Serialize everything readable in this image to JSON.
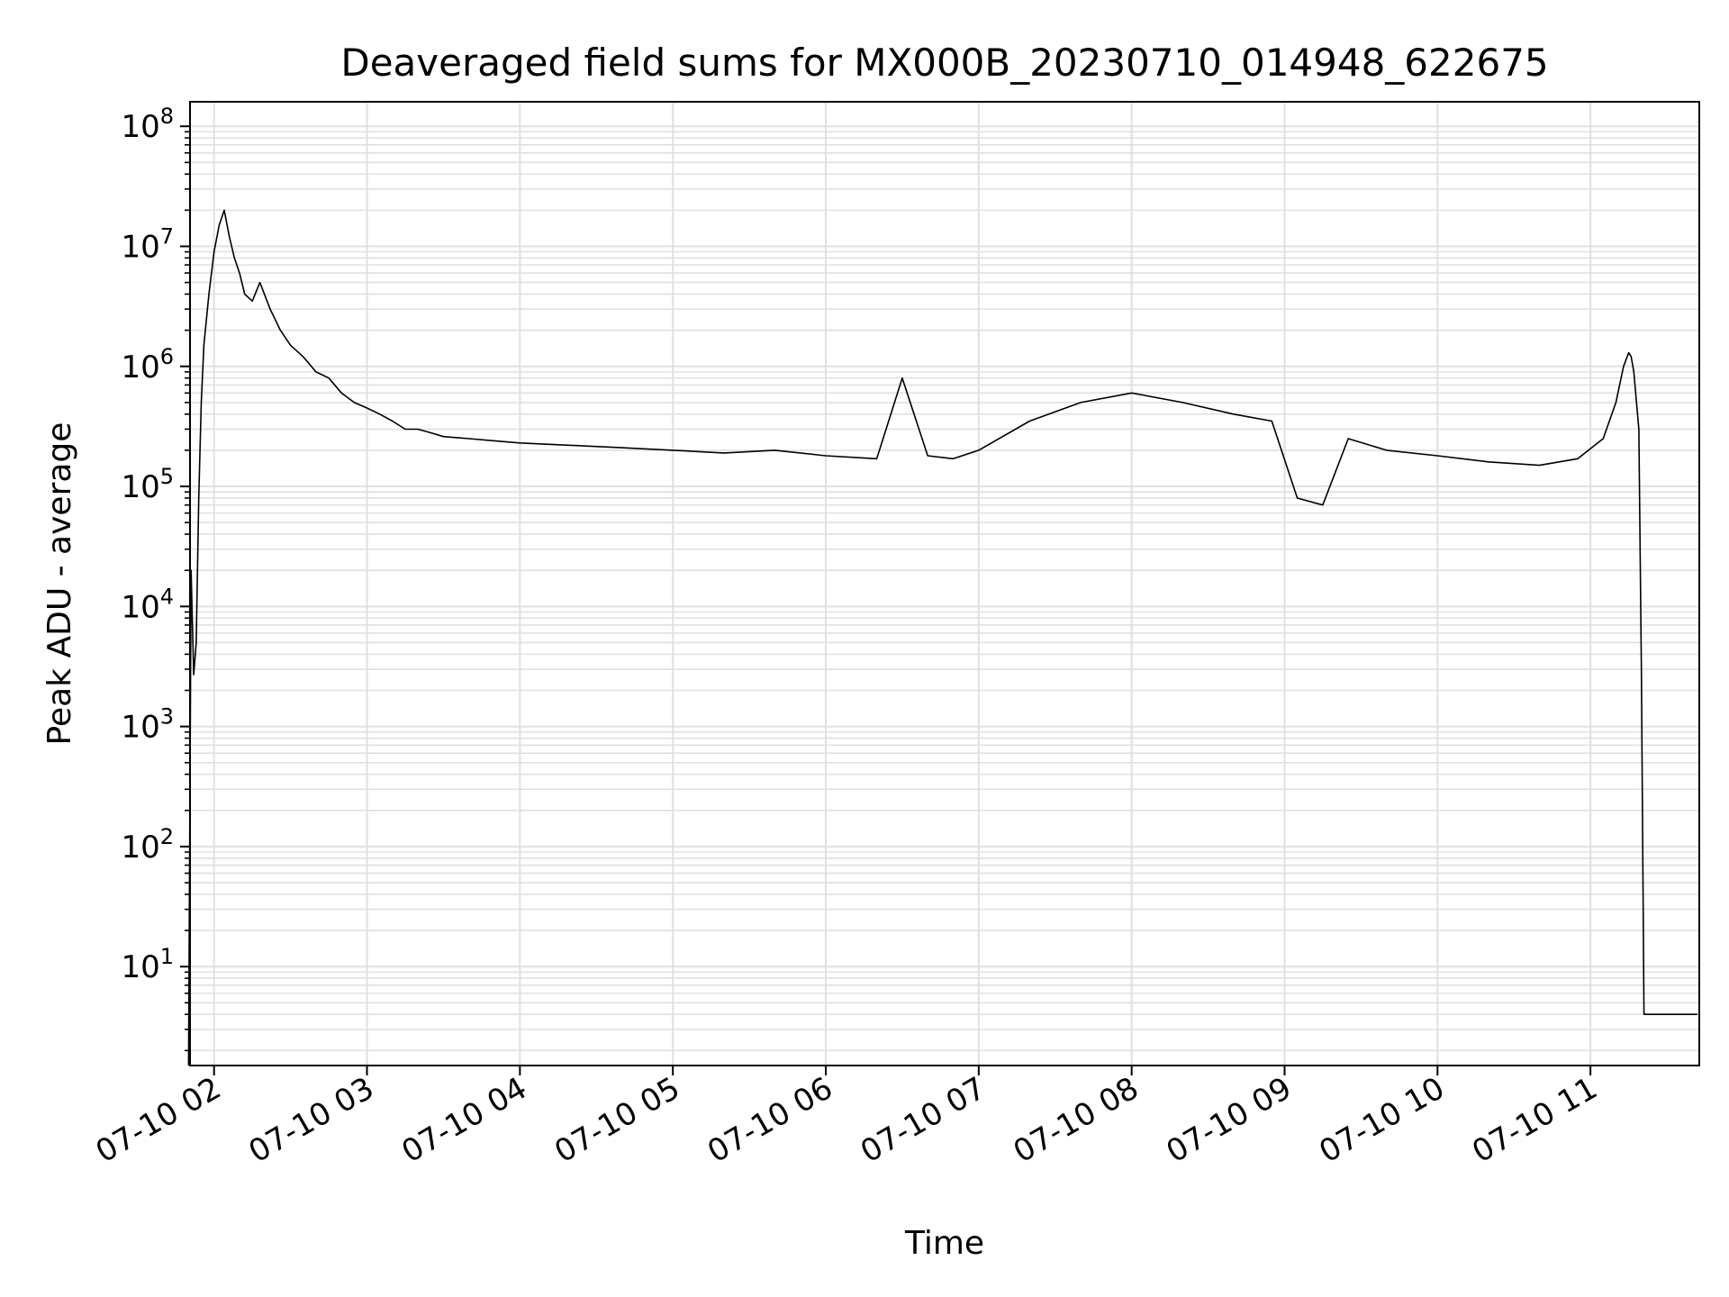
{
  "chart_data": {
    "type": "line",
    "title": "Deaveraged field sums for MX000B_20230710_014948_622675",
    "xlabel": "Time",
    "ylabel": "Peak ADU - average",
    "yscale": "log",
    "ylim": [
      1.5,
      160000000
    ],
    "xlim": [
      "2023-07-10 01:50:34",
      "2023-07-10 11:42:42"
    ],
    "grid": true,
    "line_color": "#000000",
    "grid_color": "#e0e0e0",
    "x_ticks": [
      {
        "label": "07-10 02",
        "t": "2023-07-10 02:00"
      },
      {
        "label": "07-10 03",
        "t": "2023-07-10 03:00"
      },
      {
        "label": "07-10 04",
        "t": "2023-07-10 04:00"
      },
      {
        "label": "07-10 05",
        "t": "2023-07-10 05:00"
      },
      {
        "label": "07-10 06",
        "t": "2023-07-10 06:00"
      },
      {
        "label": "07-10 07",
        "t": "2023-07-10 07:00"
      },
      {
        "label": "07-10 08",
        "t": "2023-07-10 08:00"
      },
      {
        "label": "07-10 09",
        "t": "2023-07-10 09:00"
      },
      {
        "label": "07-10 10",
        "t": "2023-07-10 10:00"
      },
      {
        "label": "07-10 11",
        "t": "2023-07-10 11:00"
      }
    ],
    "y_ticks": [
      {
        "base": "10",
        "exp": "1",
        "value": 10
      },
      {
        "base": "10",
        "exp": "2",
        "value": 100
      },
      {
        "base": "10",
        "exp": "3",
        "value": 1000
      },
      {
        "base": "10",
        "exp": "4",
        "value": 10000
      },
      {
        "base": "10",
        "exp": "5",
        "value": 100000
      },
      {
        "base": "10",
        "exp": "6",
        "value": 1000000
      },
      {
        "base": "10",
        "exp": "7",
        "value": 10000000
      },
      {
        "base": "10",
        "exp": "8",
        "value": 100000000
      }
    ],
    "series": [
      {
        "x": [
          "2023-07-10 01:50",
          "2023-07-10 01:51",
          "2023-07-10 01:52",
          "2023-07-10 01:53",
          "2023-07-10 01:54",
          "2023-07-10 01:55",
          "2023-07-10 01:56",
          "2023-07-10 01:58",
          "2023-07-10 02:00",
          "2023-07-10 02:02",
          "2023-07-10 02:04",
          "2023-07-10 02:06",
          "2023-07-10 02:08",
          "2023-07-10 02:10",
          "2023-07-10 02:12",
          "2023-07-10 02:15",
          "2023-07-10 02:18",
          "2023-07-10 02:22",
          "2023-07-10 02:26",
          "2023-07-10 02:30",
          "2023-07-10 02:35",
          "2023-07-10 02:40",
          "2023-07-10 02:45",
          "2023-07-10 02:50",
          "2023-07-10 02:55",
          "2023-07-10 03:00",
          "2023-07-10 03:05",
          "2023-07-10 03:10",
          "2023-07-10 03:15",
          "2023-07-10 03:20",
          "2023-07-10 03:25",
          "2023-07-10 03:30",
          "2023-07-10 03:40",
          "2023-07-10 03:50",
          "2023-07-10 04:00",
          "2023-07-10 04:20",
          "2023-07-10 04:40",
          "2023-07-10 05:00",
          "2023-07-10 05:20",
          "2023-07-10 05:40",
          "2023-07-10 06:00",
          "2023-07-10 06:20",
          "2023-07-10 06:30",
          "2023-07-10 06:40",
          "2023-07-10 06:50",
          "2023-07-10 07:00",
          "2023-07-10 07:20",
          "2023-07-10 07:40",
          "2023-07-10 08:00",
          "2023-07-10 08:20",
          "2023-07-10 08:40",
          "2023-07-10 08:55",
          "2023-07-10 09:05",
          "2023-07-10 09:15",
          "2023-07-10 09:25",
          "2023-07-10 09:40",
          "2023-07-10 10:00",
          "2023-07-10 10:20",
          "2023-07-10 10:40",
          "2023-07-10 10:55",
          "2023-07-10 11:05",
          "2023-07-10 11:10",
          "2023-07-10 11:13",
          "2023-07-10 11:15",
          "2023-07-10 11:16",
          "2023-07-10 11:17",
          "2023-07-10 11:19",
          "2023-07-10 11:20",
          "2023-07-10 11:21",
          "2023-07-10 11:25",
          "2023-07-10 11:30",
          "2023-07-10 11:35",
          "2023-07-10 11:40",
          "2023-07-10 11:42"
        ],
        "y": [
          1.5,
          20000,
          2700,
          5000,
          80000,
          500000,
          1500000,
          4000000,
          9000000,
          15000000,
          20000000,
          12000000,
          8000000,
          6000000,
          4000000,
          3500000,
          5000000,
          3000000,
          2000000,
          1500000,
          1200000,
          900000,
          800000,
          600000,
          500000,
          450000,
          400000,
          350000,
          300000,
          300000,
          280000,
          260000,
          250000,
          240000,
          230000,
          220000,
          210000,
          200000,
          190000,
          200000,
          180000,
          170000,
          800000,
          180000,
          170000,
          200000,
          350000,
          500000,
          600000,
          500000,
          400000,
          350000,
          80000,
          70000,
          250000,
          200000,
          180000,
          160000,
          150000,
          170000,
          250000,
          500000,
          1000000,
          1300000,
          1200000,
          900000,
          300000,
          3000,
          4,
          4,
          4,
          4,
          4,
          4
        ]
      }
    ]
  }
}
